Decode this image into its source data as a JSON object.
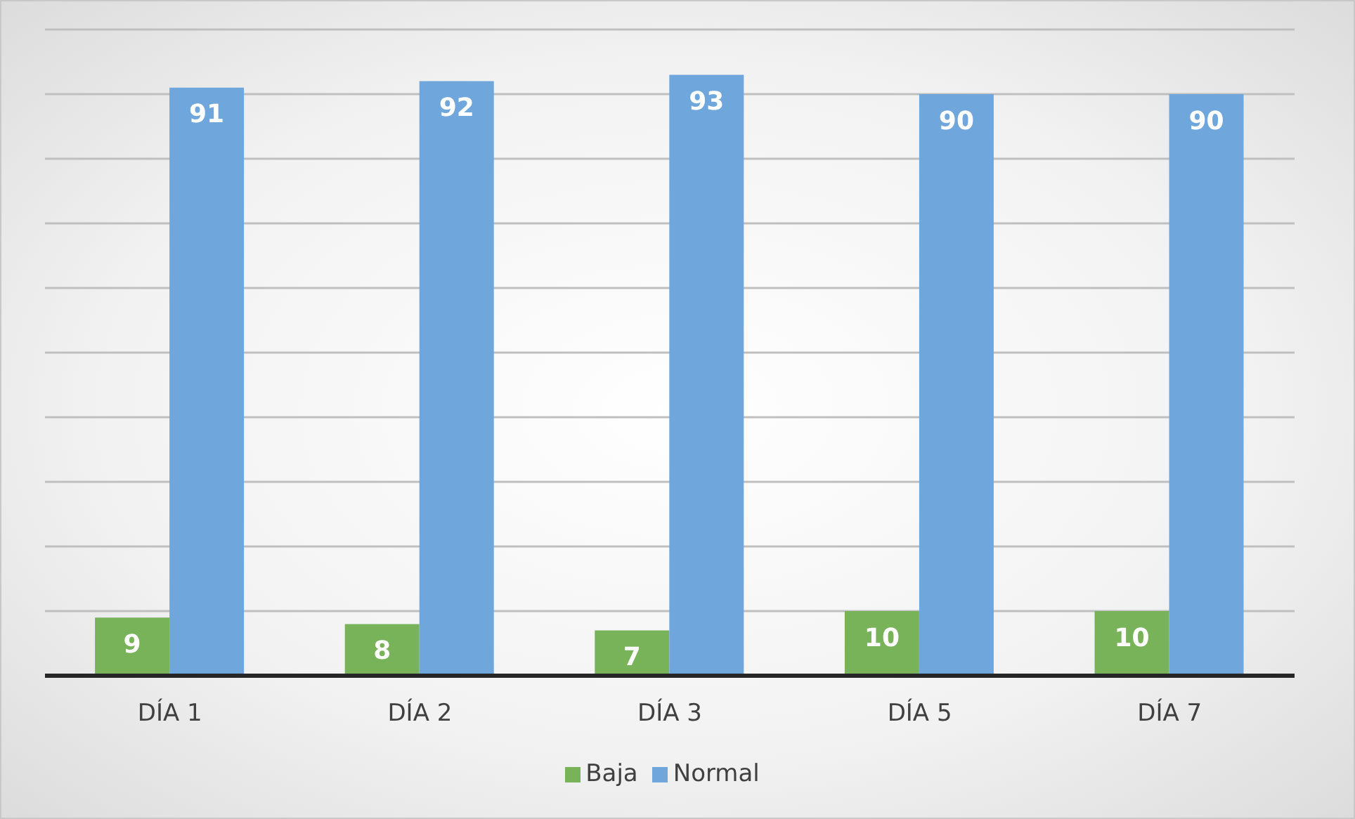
{
  "chart_data": {
    "type": "bar",
    "categories": [
      "DÍA 1",
      "DÍA 2",
      "DÍA 3",
      "DÍA 5",
      "DÍA 7"
    ],
    "series": [
      {
        "name": "Baja",
        "color": "#78b35a",
        "values": [
          9,
          8,
          7,
          10,
          10
        ]
      },
      {
        "name": "Normal",
        "color": "#6fa6dc",
        "values": [
          91,
          92,
          93,
          90,
          90
        ]
      }
    ],
    "ylim": [
      0,
      100
    ],
    "yticks": [
      {
        "value": 0,
        "label": null
      },
      {
        "value": 10,
        "label": null
      },
      {
        "value": 20,
        "label": null
      },
      {
        "value": 30,
        "label": null
      },
      {
        "value": 40,
        "label": null
      },
      {
        "value": 50,
        "label": null
      },
      {
        "value": 60,
        "label": null
      },
      {
        "value": 70,
        "label": null
      },
      {
        "value": 80,
        "label": null
      },
      {
        "value": 90,
        "label": null
      },
      {
        "value": 100,
        "label": null
      }
    ],
    "tick_labels": "x",
    "grid": "y",
    "legend": "bottom",
    "data_labels": true
  }
}
